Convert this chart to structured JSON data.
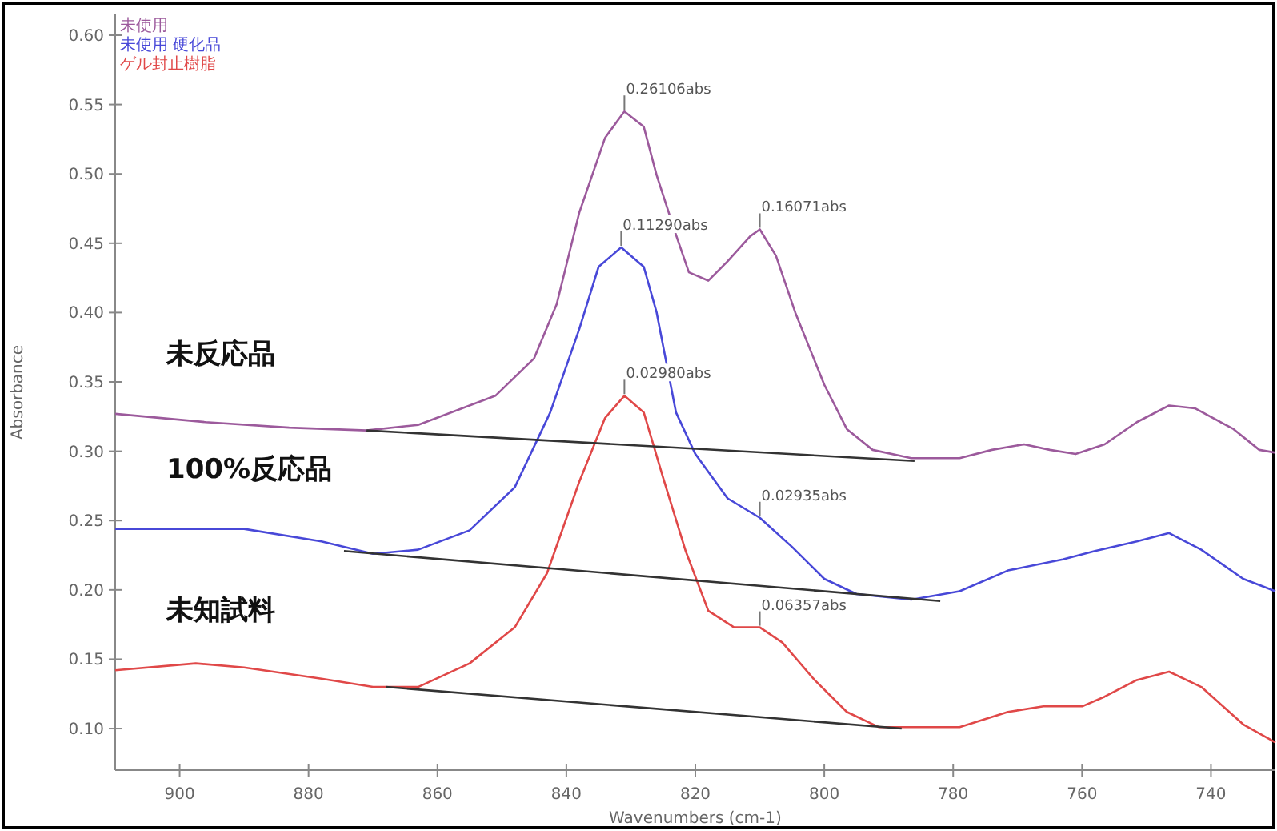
{
  "chart_data": {
    "type": "line",
    "xlabel": "Wavenumbers (cm-1)",
    "ylabel": "Absorbance",
    "xlim": [
      910,
      730
    ],
    "ylim": [
      0.07,
      0.615
    ],
    "xticks": [
      900,
      880,
      860,
      840,
      820,
      800,
      780,
      760,
      740
    ],
    "yticks": [
      {
        "value": 0.1,
        "label": "0.10"
      },
      {
        "value": 0.15,
        "label": "0.15"
      },
      {
        "value": 0.2,
        "label": "0.20"
      },
      {
        "value": 0.25,
        "label": "0.25"
      },
      {
        "value": 0.3,
        "label": "0.30"
      },
      {
        "value": 0.35,
        "label": "0.35"
      },
      {
        "value": 0.4,
        "label": "0.40"
      },
      {
        "value": 0.45,
        "label": "0.45"
      },
      {
        "value": 0.5,
        "label": "0.50"
      },
      {
        "value": 0.55,
        "label": "0.55"
      },
      {
        "value": 0.6,
        "label": "0.60"
      }
    ],
    "legend": "top left",
    "grid": false,
    "marker": "none",
    "line_style": "solid",
    "series": [
      {
        "name": "未使用",
        "color": "#9c5a9c",
        "x": [
          910,
          896,
          883,
          871,
          863,
          851,
          845,
          841.5,
          838,
          834,
          831,
          828,
          826,
          823,
          821,
          818,
          815,
          811.5,
          810,
          807.5,
          804.5,
          800,
          796.5,
          792.5,
          786.5,
          779,
          774,
          769,
          765,
          761,
          756.5,
          751.5,
          746.5,
          742.5,
          736.5,
          732.5,
          730
        ],
        "values": [
          0.327,
          0.321,
          0.317,
          0.315,
          0.319,
          0.34,
          0.367,
          0.406,
          0.472,
          0.526,
          0.545,
          0.534,
          0.499,
          0.456,
          0.429,
          0.423,
          0.437,
          0.455,
          0.46,
          0.441,
          0.4,
          0.348,
          0.316,
          0.301,
          0.295,
          0.295,
          0.301,
          0.305,
          0.301,
          0.298,
          0.305,
          0.321,
          0.333,
          0.331,
          0.316,
          0.301,
          0.299
        ]
      },
      {
        "name": "未使用 硬化品",
        "color": "#4848d8",
        "x": [
          910,
          890,
          878,
          870,
          863,
          855,
          848,
          842.5,
          838,
          835,
          831.5,
          828,
          826,
          823,
          820,
          815,
          810,
          805,
          800,
          795,
          786.5,
          779,
          771.5,
          763,
          758,
          751.5,
          746.5,
          741.5,
          735,
          730
        ],
        "values": [
          0.244,
          0.244,
          0.235,
          0.226,
          0.229,
          0.243,
          0.274,
          0.328,
          0.388,
          0.433,
          0.447,
          0.433,
          0.4,
          0.328,
          0.298,
          0.266,
          0.252,
          0.231,
          0.208,
          0.197,
          0.193,
          0.199,
          0.214,
          0.222,
          0.228,
          0.235,
          0.241,
          0.229,
          0.208,
          0.199
        ]
      },
      {
        "name": "ゲル封止樹脂",
        "color": "#e04848",
        "x": [
          910,
          897.5,
          890,
          878,
          870,
          863,
          855,
          848,
          843,
          838,
          834,
          831,
          828,
          825,
          821.5,
          818,
          814,
          810,
          806.5,
          801.5,
          796.5,
          791.5,
          786.5,
          779,
          771.5,
          766,
          760,
          756.5,
          751.5,
          746.5,
          741.5,
          735,
          730
        ],
        "values": [
          0.142,
          0.147,
          0.144,
          0.136,
          0.13,
          0.13,
          0.147,
          0.173,
          0.212,
          0.278,
          0.324,
          0.34,
          0.328,
          0.281,
          0.228,
          0.185,
          0.173,
          0.173,
          0.162,
          0.135,
          0.112,
          0.101,
          0.101,
          0.101,
          0.112,
          0.116,
          0.116,
          0.123,
          0.135,
          0.141,
          0.13,
          0.103,
          0.09
        ]
      },
      {
        "color": "#333333",
        "x": [
          871,
          786
        ],
        "values": [
          0.315,
          0.293
        ]
      },
      {
        "color": "#333333",
        "x": [
          874.5,
          782
        ],
        "values": [
          0.228,
          0.192
        ]
      },
      {
        "color": "#333333",
        "x": [
          868,
          788
        ],
        "values": [
          0.13,
          0.1
        ]
      }
    ],
    "annotations": [
      {
        "text": "0.26106abs",
        "x": 831,
        "y": 0.545
      },
      {
        "text": "0.16071abs",
        "x": 810,
        "y": 0.46
      },
      {
        "text": "0.11290abs",
        "x": 831.5,
        "y": 0.447
      },
      {
        "text": "0.02935abs",
        "x": 810,
        "y": 0.252
      },
      {
        "text": "0.02980abs",
        "x": 831,
        "y": 0.34
      },
      {
        "text": "0.06357abs",
        "x": 810,
        "y": 0.173
      },
      "未反応品",
      "100%反応品",
      "未知試料"
    ]
  }
}
